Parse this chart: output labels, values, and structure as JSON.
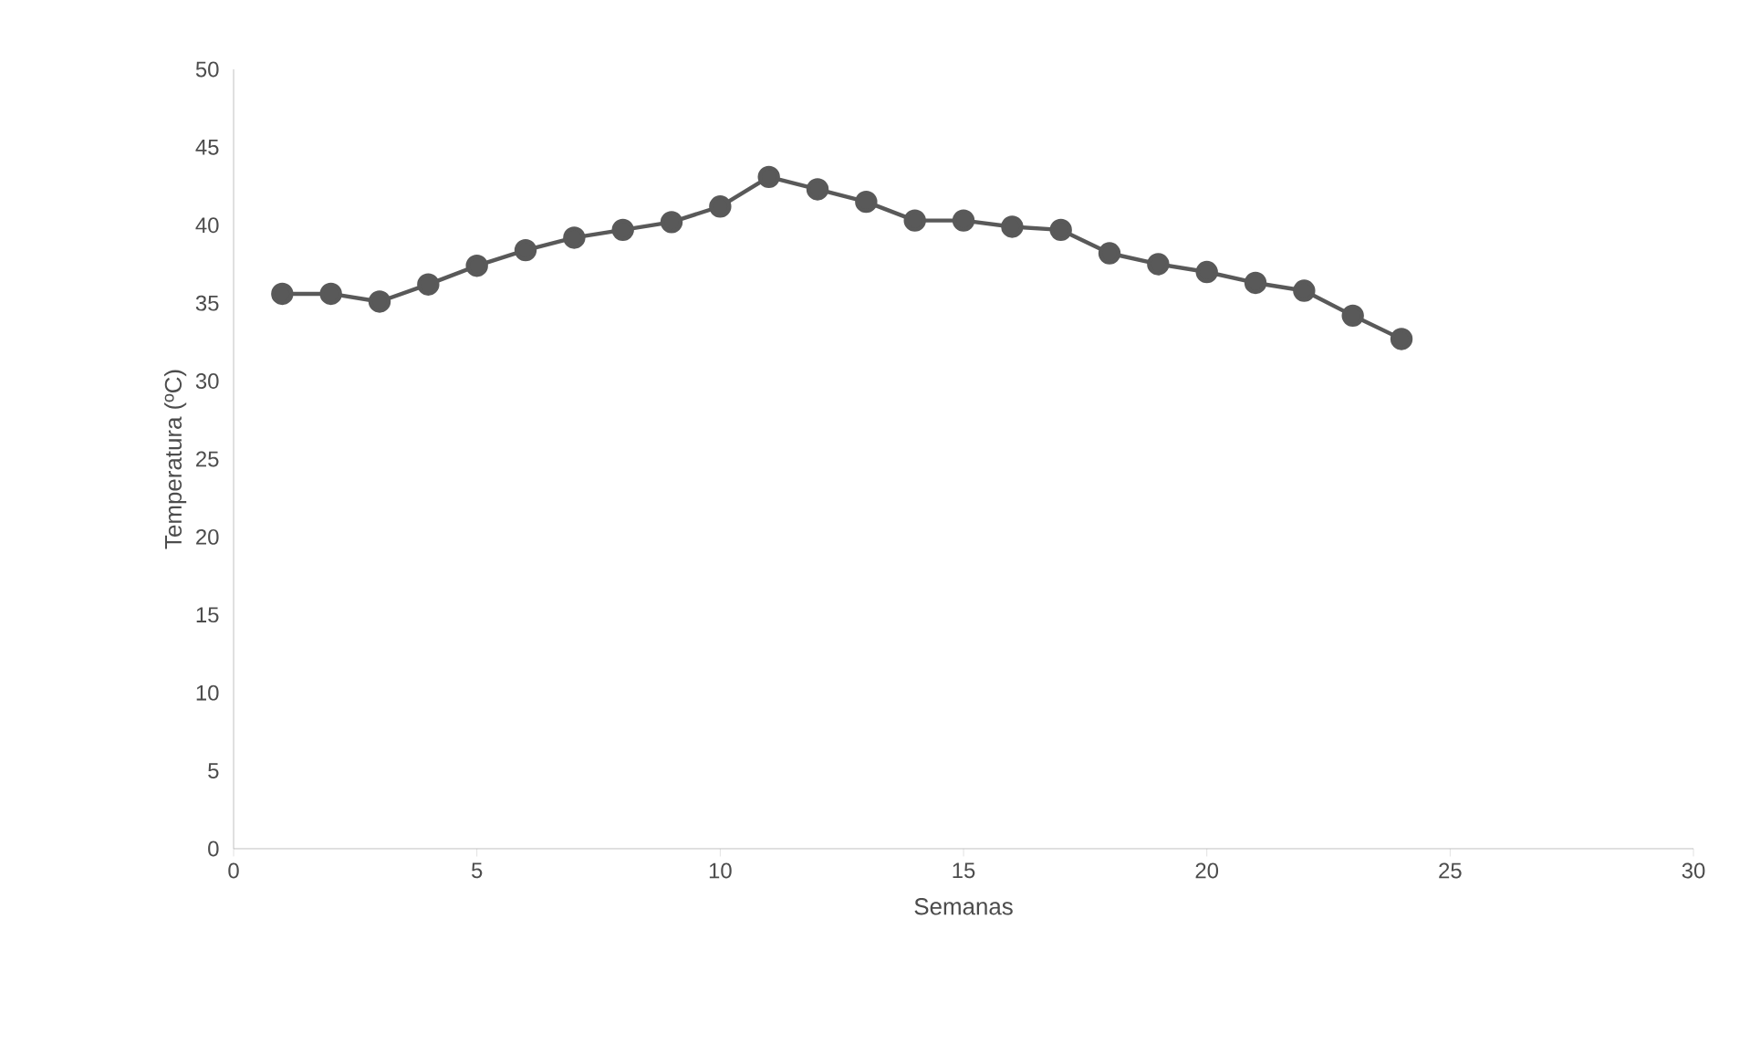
{
  "chart_data": {
    "type": "line",
    "xlabel": "Semanas",
    "ylabel": "Temperatura (ºC)",
    "x": [
      1,
      2,
      3,
      4,
      5,
      6,
      7,
      8,
      9,
      10,
      11,
      12,
      13,
      14,
      15,
      16,
      17,
      18,
      19,
      20,
      21,
      22,
      23,
      24
    ],
    "series": [
      {
        "color": "#595959",
        "values": [
          35.6,
          35.6,
          35.1,
          36.2,
          37.4,
          38.4,
          39.2,
          39.7,
          40.2,
          41.2,
          43.1,
          42.3,
          41.5,
          40.3,
          40.3,
          39.9,
          39.7,
          38.2,
          37.5,
          37.0,
          36.3,
          35.8,
          34.2,
          32.7
        ]
      }
    ],
    "xlim": [
      0,
      30
    ],
    "xticks": [
      0,
      5,
      10,
      15,
      20,
      25,
      30
    ],
    "ylim": [
      0,
      50
    ],
    "yticks": [
      0,
      5,
      10,
      15,
      20,
      25,
      30,
      35,
      40,
      45,
      50
    ],
    "grid": false,
    "marker": "circle",
    "line_style": "solid"
  }
}
